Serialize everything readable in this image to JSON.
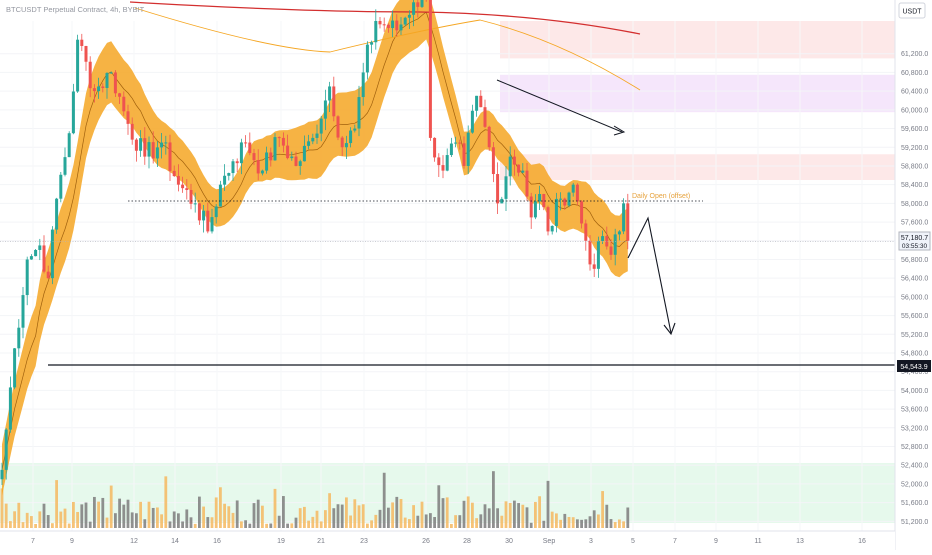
{
  "header": {
    "symbol_title": "BTCUSDT Perpetual Contract, 4h, BYBIT",
    "currency_button": "USDT"
  },
  "price_axis": {
    "ticks": [
      "61,200.0",
      "60,800.0",
      "60,400.0",
      "60,000.0",
      "59,600.0",
      "59,200.0",
      "58,800.0",
      "58,400.0",
      "58,000.0",
      "57,600.0",
      "57,200.0",
      "56,800.0",
      "56,400.0",
      "56,000.0",
      "55,600.0",
      "55,200.0",
      "54,800.0",
      "54,400.0",
      "54,000.0",
      "53,600.0",
      "53,200.0",
      "52,800.0",
      "52,400.0",
      "52,000.0",
      "51,600.0",
      "51,200.0"
    ],
    "current_price": "57,180.7",
    "countdown": "03:55:30",
    "level_price": "54,543.9"
  },
  "time_axis": {
    "labels": [
      "7",
      "9",
      "12",
      "14",
      "16",
      "19",
      "21",
      "23",
      "26",
      "28",
      "30",
      "Sep",
      "3",
      "5",
      "7",
      "9",
      "11",
      "13",
      "16"
    ]
  },
  "annotations": {
    "daily_open": "Daily Open (offset)"
  },
  "colors": {
    "up": "#26a69a",
    "down": "#ef5350",
    "band": "#f5a623",
    "ma_long": "#d32f2f",
    "ma_mid": "#f5a623",
    "volume_zone": "#e6f9ec",
    "zone_red": "#fde8e8",
    "zone_purple": "#f5e6fb"
  },
  "chart_data": {
    "type": "candlestick",
    "title": "BTCUSDT Perpetual Contract, 4h, BYBIT",
    "xlabel": "",
    "ylabel": "USDT",
    "ylim": [
      51100,
      61900
    ],
    "x_ticks": [
      "7",
      "9",
      "12",
      "14",
      "16",
      "19",
      "21",
      "23",
      "26",
      "28",
      "30",
      "Sep",
      "3",
      "5",
      "7",
      "9",
      "11",
      "13",
      "16"
    ],
    "horizontal_levels": [
      {
        "value": 54543.9,
        "style": "solid"
      },
      {
        "value": 58050,
        "style": "dotted",
        "label": "Daily Open (offset)"
      },
      {
        "value": 57180.7,
        "style": "current-price"
      }
    ],
    "zones": [
      {
        "from": 61100,
        "to": 61900,
        "color": "zone_red"
      },
      {
        "from": 59950,
        "to": 60750,
        "color": "zone_purple"
      },
      {
        "from": 58500,
        "to": 59050,
        "color": "zone_red"
      }
    ],
    "anchors": [
      {
        "i": 0,
        "c": 52300
      },
      {
        "i": 3,
        "c": 54900
      },
      {
        "i": 6,
        "c": 56800
      },
      {
        "i": 9,
        "c": 57100
      },
      {
        "i": 11,
        "c": 56400
      },
      {
        "i": 13,
        "c": 58100
      },
      {
        "i": 16,
        "c": 59500
      },
      {
        "i": 18,
        "c": 61500
      },
      {
        "i": 22,
        "c": 60400
      },
      {
        "i": 26,
        "c": 60800
      },
      {
        "i": 30,
        "c": 59700
      },
      {
        "i": 34,
        "c": 59000
      },
      {
        "i": 38,
        "c": 59300
      },
      {
        "i": 42,
        "c": 58400
      },
      {
        "i": 46,
        "c": 58000
      },
      {
        "i": 49,
        "c": 57400
      },
      {
        "i": 52,
        "c": 58400
      },
      {
        "i": 55,
        "c": 58900
      },
      {
        "i": 58,
        "c": 59300
      },
      {
        "i": 62,
        "c": 58700
      },
      {
        "i": 66,
        "c": 59400
      },
      {
        "i": 70,
        "c": 58800
      },
      {
        "i": 74,
        "c": 59400
      },
      {
        "i": 78,
        "c": 60500
      },
      {
        "i": 81,
        "c": 59200
      },
      {
        "i": 84,
        "c": 59600
      },
      {
        "i": 86,
        "c": 60800
      },
      {
        "i": 89,
        "c": 61900
      },
      {
        "i": 94,
        "c": 61700
      },
      {
        "i": 98,
        "c": 62300
      },
      {
        "i": 101,
        "c": 62400
      },
      {
        "i": 102,
        "c": 59400
      },
      {
        "i": 105,
        "c": 58700
      },
      {
        "i": 108,
        "c": 59300
      },
      {
        "i": 110,
        "c": 58800
      },
      {
        "i": 113,
        "c": 60300
      },
      {
        "i": 116,
        "c": 59200
      },
      {
        "i": 118,
        "c": 58000
      },
      {
        "i": 121,
        "c": 59000
      },
      {
        "i": 124,
        "c": 58700
      },
      {
        "i": 126,
        "c": 57700
      },
      {
        "i": 128,
        "c": 58200
      },
      {
        "i": 130,
        "c": 57400
      },
      {
        "i": 133,
        "c": 58100
      },
      {
        "i": 136,
        "c": 58400
      },
      {
        "i": 139,
        "c": 57200
      },
      {
        "i": 141,
        "c": 56600
      },
      {
        "i": 143,
        "c": 57300
      },
      {
        "i": 145,
        "c": 56900
      },
      {
        "i": 147,
        "c": 57400
      },
      {
        "i": 148,
        "c": 58000
      },
      {
        "i": 149,
        "c": 57200
      }
    ]
  }
}
